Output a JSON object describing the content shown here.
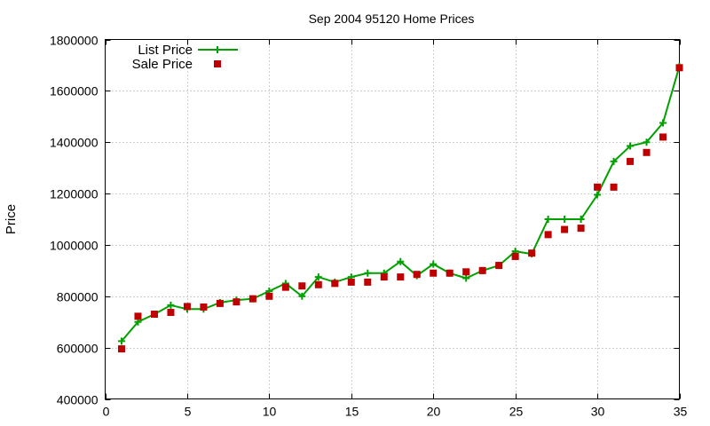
{
  "chart_data": {
    "type": "line",
    "title": "Sep 2004 95120 Home Prices",
    "xlabel": "",
    "ylabel": "Price",
    "xlim": [
      0,
      35
    ],
    "ylim": [
      400000,
      1800000
    ],
    "x_ticks": [
      "0",
      "5",
      "10",
      "15",
      "20",
      "25",
      "30",
      "35"
    ],
    "y_ticks": [
      "400000",
      "600000",
      "800000",
      "1000000",
      "1200000",
      "1400000",
      "1600000",
      "1800000"
    ],
    "x_tick_values": [
      0,
      5,
      10,
      15,
      20,
      25,
      30,
      35
    ],
    "y_tick_values": [
      400000,
      600000,
      800000,
      1000000,
      1200000,
      1400000,
      1600000,
      1800000
    ],
    "grid": true,
    "legend_position": "top-left",
    "x": [
      1,
      2,
      3,
      4,
      5,
      6,
      7,
      8,
      9,
      10,
      11,
      12,
      13,
      14,
      15,
      16,
      17,
      18,
      19,
      20,
      21,
      22,
      23,
      24,
      25,
      26,
      27,
      28,
      29,
      30,
      31,
      32,
      33,
      34,
      35
    ],
    "series": [
      {
        "name": "List Price",
        "style": "linespoints",
        "color": "#00a000",
        "values": [
          625000,
          700000,
          730000,
          765000,
          750000,
          750000,
          775000,
          785000,
          790000,
          820000,
          850000,
          800000,
          875000,
          855000,
          875000,
          890000,
          890000,
          935000,
          880000,
          925000,
          890000,
          870000,
          900000,
          920000,
          975000,
          965000,
          1100000,
          1100000,
          1100000,
          1195000,
          1325000,
          1385000,
          1400000,
          1475000,
          1695000
        ]
      },
      {
        "name": "Sale Price",
        "style": "points",
        "color": "#c00000",
        "values": [
          595000,
          722000,
          730000,
          737000,
          760000,
          758000,
          772000,
          778000,
          790000,
          800000,
          835000,
          840000,
          845000,
          850000,
          855000,
          855000,
          875000,
          875000,
          885000,
          890000,
          890000,
          895000,
          900000,
          920000,
          955000,
          968000,
          1040000,
          1060000,
          1065000,
          1225000,
          1225000,
          1325000,
          1360000,
          1420000,
          1690000
        ]
      }
    ]
  }
}
